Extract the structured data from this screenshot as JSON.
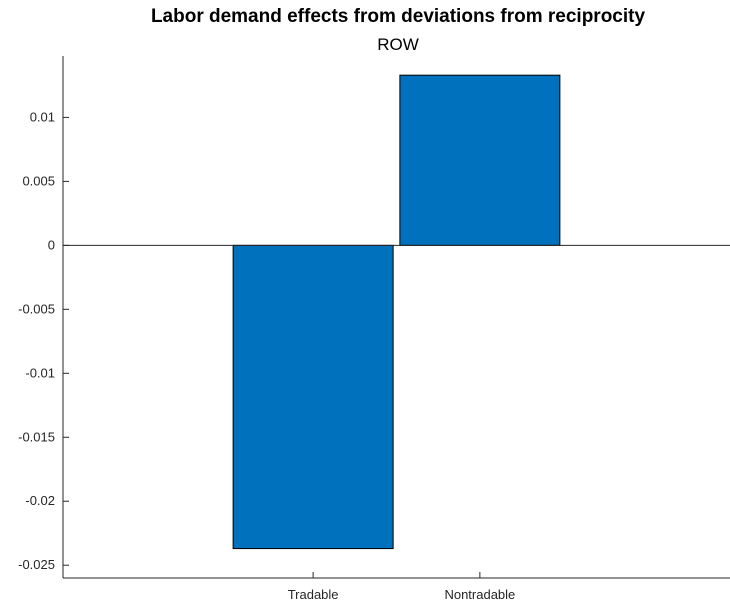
{
  "chart_data": {
    "type": "bar",
    "title": "Labor demand effects from deviations from reciprocity",
    "subtitle": "ROW",
    "xlabel": "",
    "ylabel": "",
    "categories": [
      "Tradable",
      "Nontradable"
    ],
    "values": [
      -0.0237,
      0.0133
    ],
    "ylim": [
      -0.026,
      0.0148
    ],
    "yticks": [
      -0.025,
      -0.02,
      -0.015,
      -0.01,
      -0.005,
      0,
      0.005,
      0.01
    ],
    "ytick_labels": [
      "-0.025",
      "-0.02",
      "-0.015",
      "-0.01",
      "-0.005",
      "0",
      "0.005",
      "0.01"
    ],
    "grid": false,
    "legend": "none",
    "colors": {
      "bar": "#0072BD",
      "axis": "#262626"
    }
  }
}
